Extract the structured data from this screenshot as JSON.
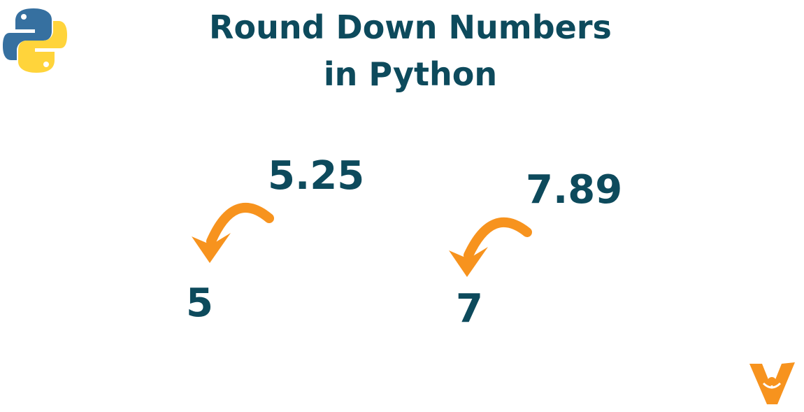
{
  "title": [
    "Round Down Numbers",
    "in Python"
  ],
  "examples": [
    {
      "input": "5.25",
      "output": "5"
    },
    {
      "input": "7.89",
      "output": "7"
    }
  ]
}
